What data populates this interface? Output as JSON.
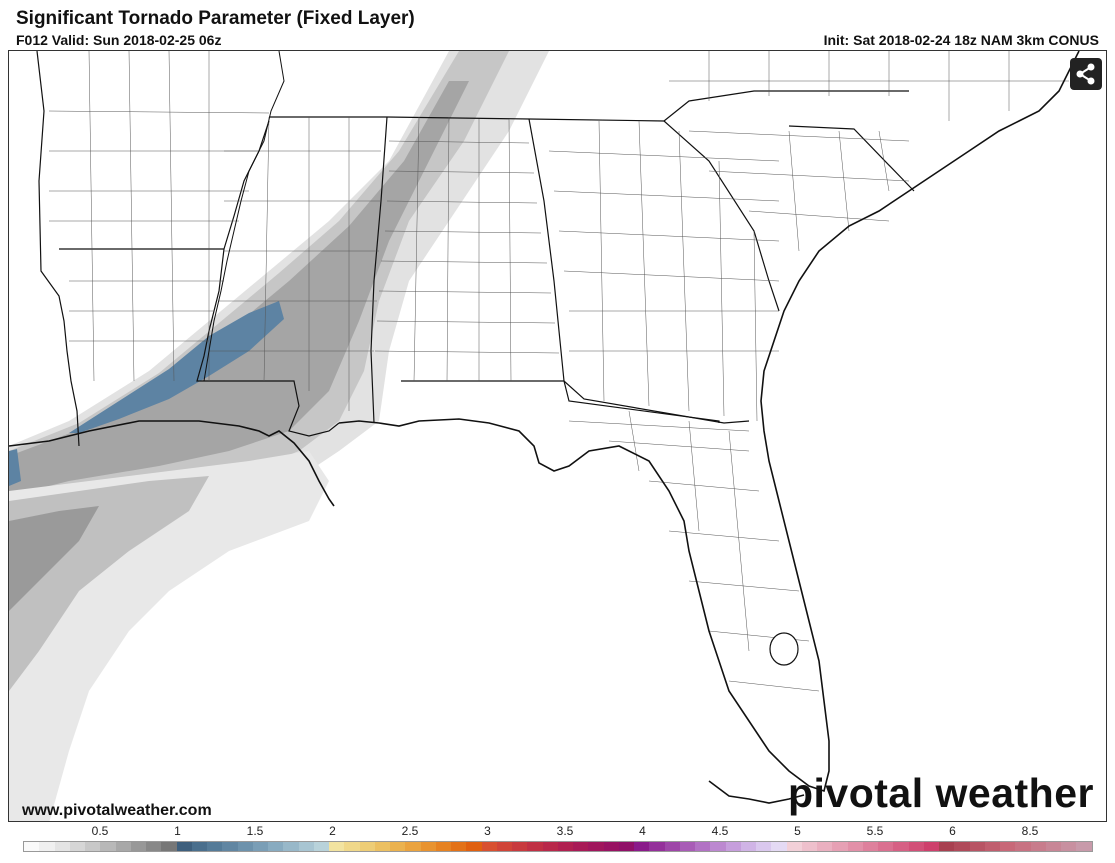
{
  "header": {
    "title": "Significant Tornado Parameter (Fixed Layer)",
    "valid": "F012 Valid: Sun 2018-02-25 06z",
    "init": "Init: Sat 2018-02-24 18z NAM 3km CONUS"
  },
  "footer": {
    "website": "www.pivotalweather.com",
    "brand": "pivotal weather"
  },
  "share": {
    "icon": "share-icon"
  },
  "legend": {
    "labels": [
      "0.5",
      "1",
      "1.5",
      "2",
      "2.5",
      "3",
      "3.5",
      "4",
      "4.5",
      "5",
      "5.5",
      "6",
      "8.5"
    ],
    "colors": [
      "#fafafa",
      "#f0f0f0",
      "#e4e4e4",
      "#d6d6d6",
      "#c8c8c8",
      "#b8b8b8",
      "#a8a8a8",
      "#989898",
      "#888888",
      "#777777",
      "#3e5f7d",
      "#4a6f8d",
      "#557b98",
      "#6186a2",
      "#6d92ac",
      "#7a9eb6",
      "#88abc0",
      "#98b8c9",
      "#a8c5d2",
      "#b8d2da",
      "#f2e3a0",
      "#f0d88a",
      "#eecd76",
      "#ecc062",
      "#ebb24f",
      "#eaa33f",
      "#e89330",
      "#e68222",
      "#e37218",
      "#e06010",
      "#d85030",
      "#d04438",
      "#c83a3e",
      "#c03044",
      "#b8284a",
      "#b02050",
      "#a81a56",
      "#a0165c",
      "#981262",
      "#901068",
      "#8a1a8a",
      "#94309a",
      "#9e46a8",
      "#a85cb6",
      "#b272c4",
      "#bc88d0",
      "#c69edc",
      "#d0b4e6",
      "#dac8ee",
      "#e4daf4",
      "#f2d0d8",
      "#eec0cc",
      "#eab0c0",
      "#e6a0b4",
      "#e290a8",
      "#de809c",
      "#da7090",
      "#d66084",
      "#d25078",
      "#ce406c",
      "#a84050",
      "#b04a5a",
      "#b85464",
      "#c05e6e",
      "#c86878",
      "#c87282",
      "#c87c8c",
      "#c88696",
      "#c890a0",
      "#c89aaa"
    ]
  }
}
